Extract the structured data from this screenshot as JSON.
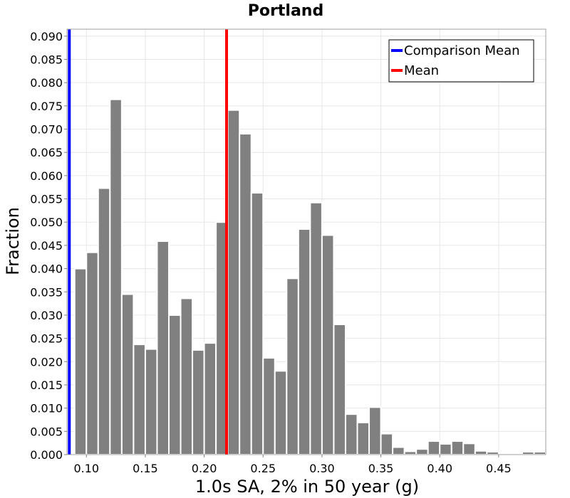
{
  "chart_data": {
    "type": "bar",
    "title": "Portland",
    "xlabel": "1.0s SA, 2% in 50 year (g)",
    "ylabel": "Fraction",
    "xlim": [
      0.0835,
      0.49
    ],
    "ylim": [
      0.0,
      0.0915
    ],
    "bin_width": 0.01,
    "x_ticks": [
      0.1,
      0.15,
      0.2,
      0.25,
      0.3,
      0.35,
      0.4,
      0.45
    ],
    "x_tick_labels": [
      "0.10",
      "0.15",
      "0.20",
      "0.25",
      "0.30",
      "0.35",
      "0.40",
      "0.45"
    ],
    "y_ticks": [
      0.0,
      0.005,
      0.01,
      0.015,
      0.02,
      0.025,
      0.03,
      0.035,
      0.04,
      0.045,
      0.05,
      0.055,
      0.06,
      0.065,
      0.07,
      0.075,
      0.08,
      0.085,
      0.09
    ],
    "y_tick_labels": [
      "0.000",
      "0.005",
      "0.010",
      "0.015",
      "0.020",
      "0.025",
      "0.030",
      "0.035",
      "0.040",
      "0.045",
      "0.050",
      "0.055",
      "0.060",
      "0.065",
      "0.070",
      "0.075",
      "0.080",
      "0.085",
      "0.090"
    ],
    "bins": [
      {
        "x0": 0.09,
        "value": 0.04
      },
      {
        "x0": 0.1,
        "value": 0.0435
      },
      {
        "x0": 0.11,
        "value": 0.0573
      },
      {
        "x0": 0.12,
        "value": 0.0764
      },
      {
        "x0": 0.13,
        "value": 0.0345
      },
      {
        "x0": 0.14,
        "value": 0.0237
      },
      {
        "x0": 0.15,
        "value": 0.0227
      },
      {
        "x0": 0.16,
        "value": 0.0459
      },
      {
        "x0": 0.17,
        "value": 0.03
      },
      {
        "x0": 0.18,
        "value": 0.0336
      },
      {
        "x0": 0.19,
        "value": 0.0225
      },
      {
        "x0": 0.2,
        "value": 0.024
      },
      {
        "x0": 0.21,
        "value": 0.05
      },
      {
        "x0": 0.22,
        "value": 0.0741
      },
      {
        "x0": 0.23,
        "value": 0.069
      },
      {
        "x0": 0.24,
        "value": 0.0563
      },
      {
        "x0": 0.25,
        "value": 0.0208
      },
      {
        "x0": 0.26,
        "value": 0.018
      },
      {
        "x0": 0.27,
        "value": 0.0379
      },
      {
        "x0": 0.28,
        "value": 0.0485
      },
      {
        "x0": 0.29,
        "value": 0.0542
      },
      {
        "x0": 0.3,
        "value": 0.0472
      },
      {
        "x0": 0.31,
        "value": 0.028
      },
      {
        "x0": 0.32,
        "value": 0.0087
      },
      {
        "x0": 0.33,
        "value": 0.0069
      },
      {
        "x0": 0.34,
        "value": 0.0102
      },
      {
        "x0": 0.35,
        "value": 0.0045
      },
      {
        "x0": 0.36,
        "value": 0.0016
      },
      {
        "x0": 0.37,
        "value": 0.0007
      },
      {
        "x0": 0.38,
        "value": 0.0012
      },
      {
        "x0": 0.39,
        "value": 0.0029
      },
      {
        "x0": 0.4,
        "value": 0.0023
      },
      {
        "x0": 0.41,
        "value": 0.0029
      },
      {
        "x0": 0.42,
        "value": 0.0024
      },
      {
        "x0": 0.43,
        "value": 0.0008
      },
      {
        "x0": 0.44,
        "value": 0.0006
      },
      {
        "x0": 0.45,
        "value": 0.0
      },
      {
        "x0": 0.46,
        "value": 0.0
      },
      {
        "x0": 0.47,
        "value": 0.0006
      },
      {
        "x0": 0.48,
        "value": 0.0006
      }
    ],
    "vlines": [
      {
        "name": "Comparison Mean",
        "x": 0.0855,
        "color": "#0000ff"
      },
      {
        "name": "Mean",
        "x": 0.219,
        "color": "#ff0000"
      }
    ],
    "legend": {
      "position": "top-right",
      "entries": [
        {
          "label": "Comparison Mean",
          "color": "#0000ff"
        },
        {
          "label": "Mean",
          "color": "#ff0000"
        }
      ]
    },
    "grid": true,
    "bar_color": "#808080"
  }
}
